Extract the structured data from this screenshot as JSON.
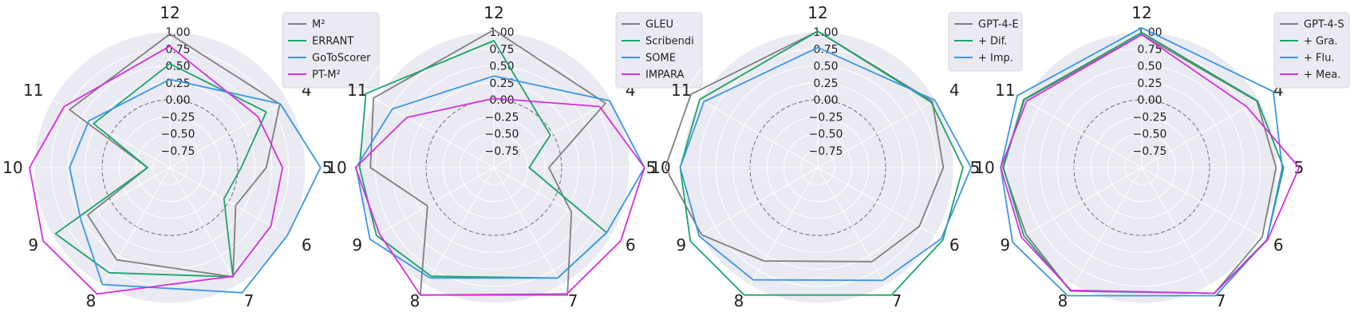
{
  "chart_data": [
    {
      "type": "radar",
      "axes": [
        "12",
        "4",
        "5",
        "6",
        "7",
        "8",
        "9",
        "10",
        "11"
      ],
      "rlim": [
        -1.0,
        1.0
      ],
      "rticks": [
        "1.00",
        "0.75",
        "0.50",
        "0.25",
        "0.00",
        "−0.25",
        "−0.50",
        "−0.75"
      ],
      "legend_position": "top-right",
      "series": [
        {
          "name": "M²",
          "color": "#7f7f7f",
          "values": [
            0.97,
            0.87,
            0.42,
            0.12,
            0.86,
            0.57,
            0.4,
            -0.67,
            0.71
          ]
        },
        {
          "name": "ERRANT",
          "color": "#1aa566",
          "values": [
            0.53,
            0.64,
            0.05,
            -0.08,
            0.86,
            0.79,
            0.95,
            -0.67,
            0.3
          ]
        },
        {
          "name": "GoToScorer",
          "color": "#3a96e8",
          "values": [
            0.3,
            0.88,
            1.22,
            1.0,
            1.13,
            0.99,
            0.52,
            0.48,
            0.38
          ]
        },
        {
          "name": "PT-M²",
          "color": "#d62fe0",
          "values": [
            0.79,
            0.5,
            0.66,
            0.72,
            0.85,
            1.15,
            1.16,
            1.07,
            0.8
          ]
        }
      ]
    },
    {
      "type": "radar",
      "axes": [
        "12",
        "4",
        "5",
        "6",
        "7",
        "8",
        "9",
        "10",
        "11"
      ],
      "rlim": [
        -1.0,
        1.0
      ],
      "rticks": [
        "1.00",
        "0.75",
        "0.50",
        "0.25",
        "0.00",
        "−0.25",
        "−0.50",
        "−0.75"
      ],
      "legend_position": "top-right",
      "series": [
        {
          "name": "GLEU",
          "color": "#7f7f7f",
          "values": [
            1.03,
            0.9,
            -0.19,
            0.32,
            1.17,
            1.17,
            0.13,
            0.82,
            1.05
          ]
        },
        {
          "name": "Scribendi",
          "color": "#1aa566",
          "values": [
            0.87,
            -0.04,
            -0.48,
            0.92,
            0.88,
            0.85,
            1.0,
            0.98,
            1.18
          ]
        },
        {
          "name": "SOME",
          "color": "#3a96e8",
          "values": [
            0.35,
            0.97,
            1.22,
            0.92,
            0.88,
            0.88,
            1.11,
            1.03,
            0.73
          ]
        },
        {
          "name": "IMPARA",
          "color": "#d62fe0",
          "values": [
            0.02,
            0.8,
            1.22,
            1.16,
            1.15,
            1.17,
            0.95,
            1.04,
            0.48
          ]
        }
      ]
    },
    {
      "type": "radar",
      "axes": [
        "12",
        "4",
        "5",
        "6",
        "7",
        "8",
        "9",
        "10",
        "11"
      ],
      "rlim": [
        -1.0,
        1.0
      ],
      "rticks": [
        "1.00",
        "0.75",
        "0.50",
        "0.25",
        "0.00",
        "−0.25",
        "−0.50",
        "−0.75"
      ],
      "legend_position": "top-right",
      "series": [
        {
          "name": "GPT-4-E",
          "color": "#7f7f7f",
          "values": [
            1.01,
            0.95,
            0.85,
            0.73,
            0.6,
            0.59,
            0.98,
            1.25,
            1.16
          ]
        },
        {
          "name": "+ Dif.",
          "color": "#1aa566",
          "values": [
            1.01,
            0.93,
            1.14,
            1.13,
            1.17,
            1.17,
            1.17,
            1.03,
            1.01
          ]
        },
        {
          "name": "+ Imp.",
          "color": "#3a96e8",
          "values": [
            0.77,
            0.99,
            1.26,
            1.1,
            0.92,
            0.91,
            1.02,
            1.03,
            0.94
          ]
        }
      ]
    },
    {
      "type": "radar",
      "axes": [
        "12",
        "4",
        "5",
        "6",
        "7",
        "8",
        "9",
        "10",
        "11"
      ],
      "rlim": [
        -1.0,
        1.0
      ],
      "rticks": [
        "1.00",
        "0.75",
        "0.50",
        "0.25",
        "0.00",
        "−0.25",
        "−0.50",
        "−0.75"
      ],
      "legend_position": "top-right",
      "series": [
        {
          "name": "GPT-4-S",
          "color": "#7f7f7f",
          "values": [
            0.96,
            0.96,
            0.98,
            1.05,
            1.14,
            1.1,
            0.97,
            1.05,
            1.0
          ]
        },
        {
          "name": "+ Gra.",
          "color": "#1aa566",
          "values": [
            0.99,
            0.97,
            1.09,
            1.13,
            1.14,
            1.1,
            1.01,
            1.04,
            1.01
          ]
        },
        {
          "name": "+ Flu.",
          "color": "#3a96e8",
          "values": [
            1.06,
            1.24,
            1.07,
            1.13,
            1.18,
            1.18,
            1.2,
            1.08,
            1.12
          ]
        },
        {
          "name": "+ Mea.",
          "color": "#d62fe0",
          "values": [
            0.96,
            0.79,
            1.32,
            1.14,
            1.14,
            1.09,
            1.05,
            1.08,
            0.96
          ]
        }
      ]
    }
  ]
}
